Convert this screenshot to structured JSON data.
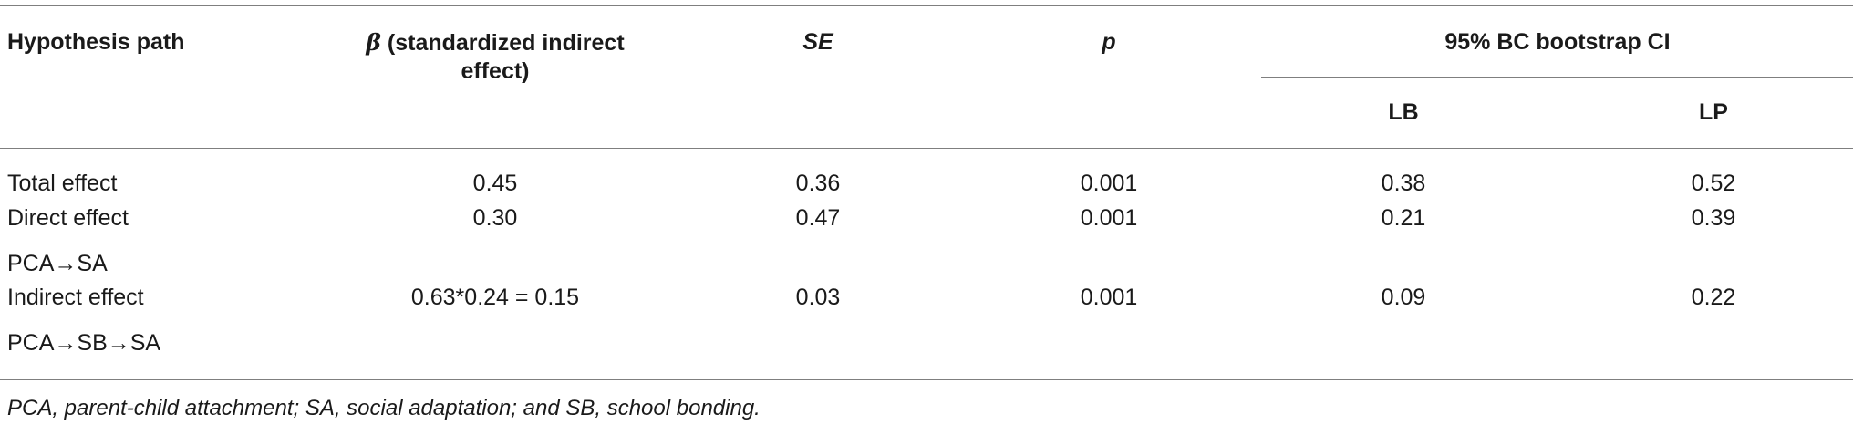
{
  "table": {
    "headers": {
      "hypothesis_path": "Hypothesis path",
      "beta_symbol": "β",
      "beta_line1": " (standardized indirect",
      "beta_line2": "effect)",
      "se": "SE",
      "p": "p",
      "ci": "95% BC bootstrap CI",
      "lb": "LB",
      "lp": "LP"
    },
    "rows": [
      {
        "label": "Total effect",
        "beta": "0.45",
        "se": "0.36",
        "p": "0.001",
        "lb": "0.38",
        "lp": "0.52"
      },
      {
        "label": "Direct effect",
        "beta": "0.30",
        "se": "0.47",
        "p": "0.001",
        "lb": "0.21",
        "lp": "0.39"
      },
      {
        "label": "PCA→SA"
      },
      {
        "label": "Indirect effect",
        "beta": "0.63*0.24 = 0.15",
        "se": "0.03",
        "p": "0.001",
        "lb": "0.09",
        "lp": "0.22"
      },
      {
        "label": "PCA→SB→SA"
      }
    ],
    "footnote": "PCA, parent-child attachment; SA, social adaptation; and SB, school bonding."
  }
}
